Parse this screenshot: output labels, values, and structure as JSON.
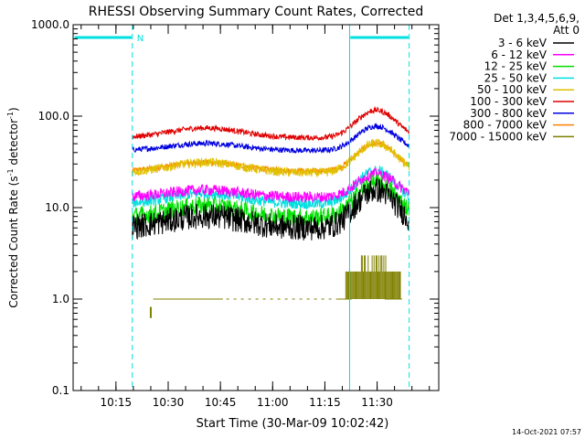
{
  "chart_data": {
    "type": "line",
    "title": "RHESSI Observing Summary Count Rates, Corrected",
    "xlabel": "Start Time (30-Mar-09 10:02:42)",
    "ylabel_main": "Corrected Count Rate (s",
    "ylabel_sup1": "-1",
    "ylabel_mid": " detector",
    "ylabel_sup2": "-1",
    "ylabel_end": ")",
    "ylog": true,
    "ylim": [
      0.1,
      1000
    ],
    "xlim_min": [
      0,
      105
    ],
    "ytick_labels": [
      "0.1",
      "1.0",
      "10.0",
      "100.0",
      "1000.0"
    ],
    "ytick_values": [
      0.1,
      1,
      10,
      100,
      1000
    ],
    "xtick_labels": [
      "10:15",
      "10:30",
      "10:45",
      "11:00",
      "11:15",
      "11:30"
    ],
    "xtick_values_min": [
      12.3,
      27.3,
      42.3,
      57.3,
      72.3,
      87.3
    ],
    "legend_header_1": "Det 1,3,4,5,6,9,",
    "legend_header_2": "Att 0",
    "legend_placement": "top-right, outside plot",
    "series": [
      {
        "name": "3 - 6 keV",
        "color": "#000000",
        "base": 6.0,
        "noise": 0.14
      },
      {
        "name": "6 - 12 keV",
        "color": "#ff00ff",
        "base": 13.0,
        "noise": 0.06
      },
      {
        "name": "12 - 25 keV",
        "color": "#00e000",
        "base": 7.8,
        "noise": 0.1
      },
      {
        "name": "25 - 50 keV",
        "color": "#00e0e0",
        "base": 11.0,
        "noise": 0.06
      },
      {
        "name": "50 - 100 keV",
        "color": "#e0c000",
        "base": 24.0,
        "noise": 0.05
      },
      {
        "name": "100 - 300 keV",
        "color": "#e00000",
        "base": 58.0,
        "noise": 0.03
      },
      {
        "name": "300 - 800 keV",
        "color": "#0000e0",
        "base": 42.0,
        "noise": 0.03
      },
      {
        "name": "800 - 7000 keV",
        "color": "#ff8000",
        "base": 25.0,
        "noise": 0.03
      },
      {
        "name": "7000 - 15000 keV",
        "color": "#808000",
        "base": 1.0,
        "noise": 0.0
      }
    ],
    "flag_marker": "N",
    "attenuator_color": "#00e0e0",
    "saa_lines_min": [
      0.0,
      17.0,
      79.4,
      96.5
    ]
  },
  "timestamp": "14-Oct-2021 07:57"
}
